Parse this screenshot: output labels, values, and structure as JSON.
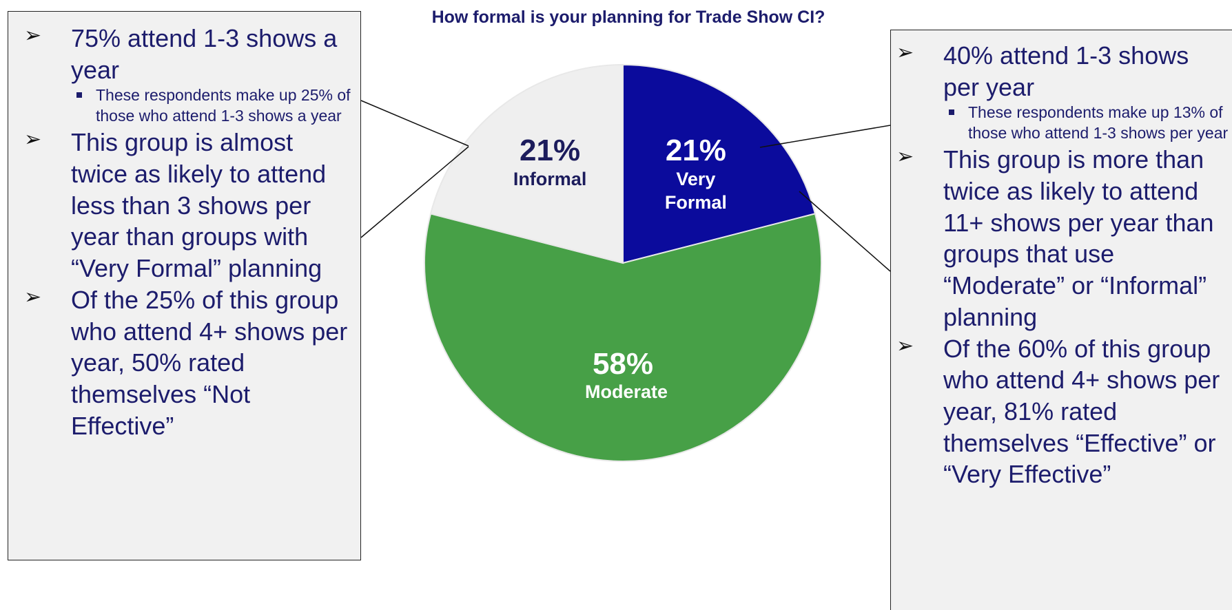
{
  "chart_data": {
    "type": "pie",
    "title": "How formal is your planning for Trade Show CI?",
    "categories": [
      "Very Formal",
      "Moderate",
      "Informal"
    ],
    "values": [
      21,
      58,
      21
    ],
    "value_labels": [
      "21%",
      "58%",
      "21%"
    ],
    "colors": [
      "#0b0b9c",
      "#47a047",
      "#efefef"
    ],
    "label_colors": [
      "#ffffff",
      "#ffffff",
      "#1c1c5c"
    ]
  },
  "callouts": [
    {
      "items": [
        {
          "text": "75% attend 1-3 shows a year",
          "subitems": [
            "These respondents make up 25% of those who attend 1-3 shows a year"
          ]
        },
        {
          "text": "This group is almost twice as likely to attend less than 3 shows per year than groups with “Very Formal” planning",
          "subitems": []
        },
        {
          "text": "Of the 25% of this group who attend 4+ shows per year, 50% rated themselves “Not Effective”",
          "subitems": []
        }
      ]
    },
    {
      "items": [
        {
          "text": "40% attend 1-3 shows per year",
          "subitems": [
            "These respondents make up 13% of those who attend 1-3 shows per year"
          ]
        },
        {
          "text": "This group is more than twice as likely to attend 11+ shows per year than groups that use “Moderate” or “Informal” planning",
          "subitems": []
        },
        {
          "text": "Of the 60% of this group who attend 4+ shows per year, 81% rated themselves “Effective” or “Very Effective”",
          "subitems": []
        }
      ]
    }
  ]
}
